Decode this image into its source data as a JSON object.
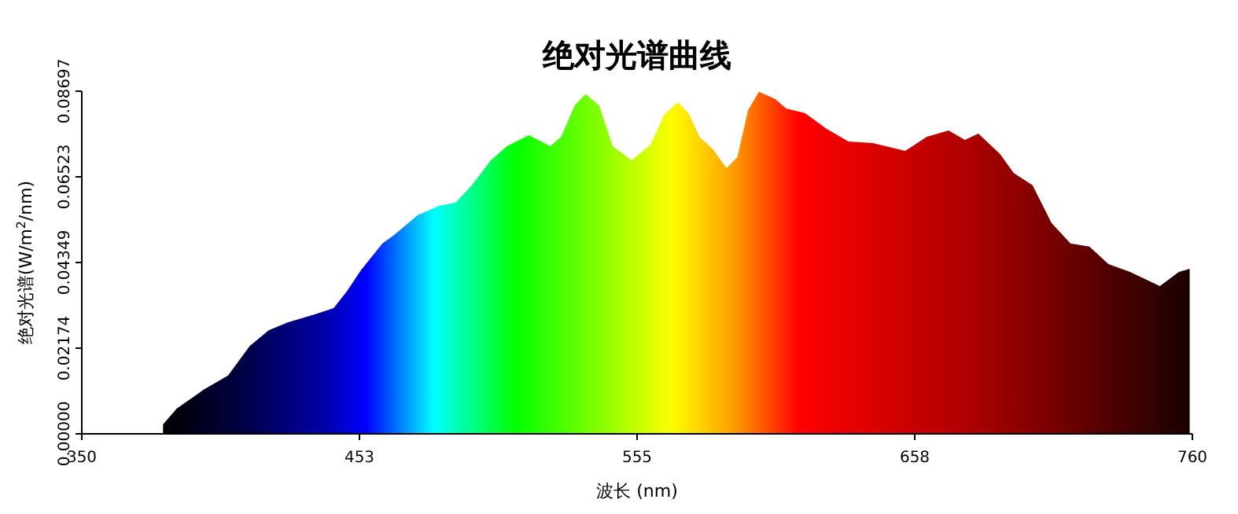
{
  "chart_data": {
    "type": "area",
    "title": "绝对光谱曲线",
    "xlabel": "波长 (nm)",
    "ylabel": "绝对光谱(W/m$^{2}$/nm)",
    "xlim": [
      350,
      760
    ],
    "xticks": [
      350,
      {
        "value": 452.5,
        "label": "453"
      },
      555,
      {
        "value": 657.5,
        "label": "658"
      },
      760
    ],
    "ylim": [
      0,
      0.08697
    ],
    "yticks": [
      {
        "value": 0,
        "label": "0.00000"
      },
      {
        "value": 0.02174,
        "label": "0.02174"
      },
      {
        "value": 0.04349,
        "label": "0.04349"
      },
      {
        "value": 0.06523,
        "label": "0.06523"
      },
      {
        "value": 0.08697,
        "label": "0.08697"
      }
    ],
    "grid": false,
    "legend": false,
    "x": [
      380,
      385,
      395,
      404,
      412,
      419,
      426,
      436,
      443,
      448,
      453,
      461,
      465,
      474,
      482,
      488,
      494,
      501,
      507,
      515,
      523,
      527,
      532,
      536,
      541,
      546,
      553,
      560,
      565,
      570,
      574,
      578,
      583,
      588,
      592,
      596,
      600,
      606,
      610,
      617,
      625,
      633,
      642,
      654,
      662,
      670,
      676,
      681,
      689,
      694,
      701,
      708,
      715,
      722,
      729,
      737,
      748,
      755,
      759
    ],
    "values": [
      0.0024,
      0.0064,
      0.0112,
      0.0148,
      0.0223,
      0.0263,
      0.0283,
      0.0303,
      0.0319,
      0.0363,
      0.0415,
      0.0483,
      0.0503,
      0.0555,
      0.0579,
      0.0587,
      0.0631,
      0.0694,
      0.073,
      0.0758,
      0.073,
      0.0754,
      0.0834,
      0.0862,
      0.0834,
      0.073,
      0.0694,
      0.0734,
      0.081,
      0.0842,
      0.0814,
      0.0754,
      0.0722,
      0.0674,
      0.0702,
      0.0822,
      0.0868,
      0.085,
      0.0826,
      0.0814,
      0.0774,
      0.0742,
      0.0738,
      0.0718,
      0.0754,
      0.077,
      0.0746,
      0.0762,
      0.071,
      0.0662,
      0.0631,
      0.0535,
      0.0483,
      0.0475,
      0.0431,
      0.0411,
      0.0375,
      0.0411,
      0.0419
    ]
  }
}
